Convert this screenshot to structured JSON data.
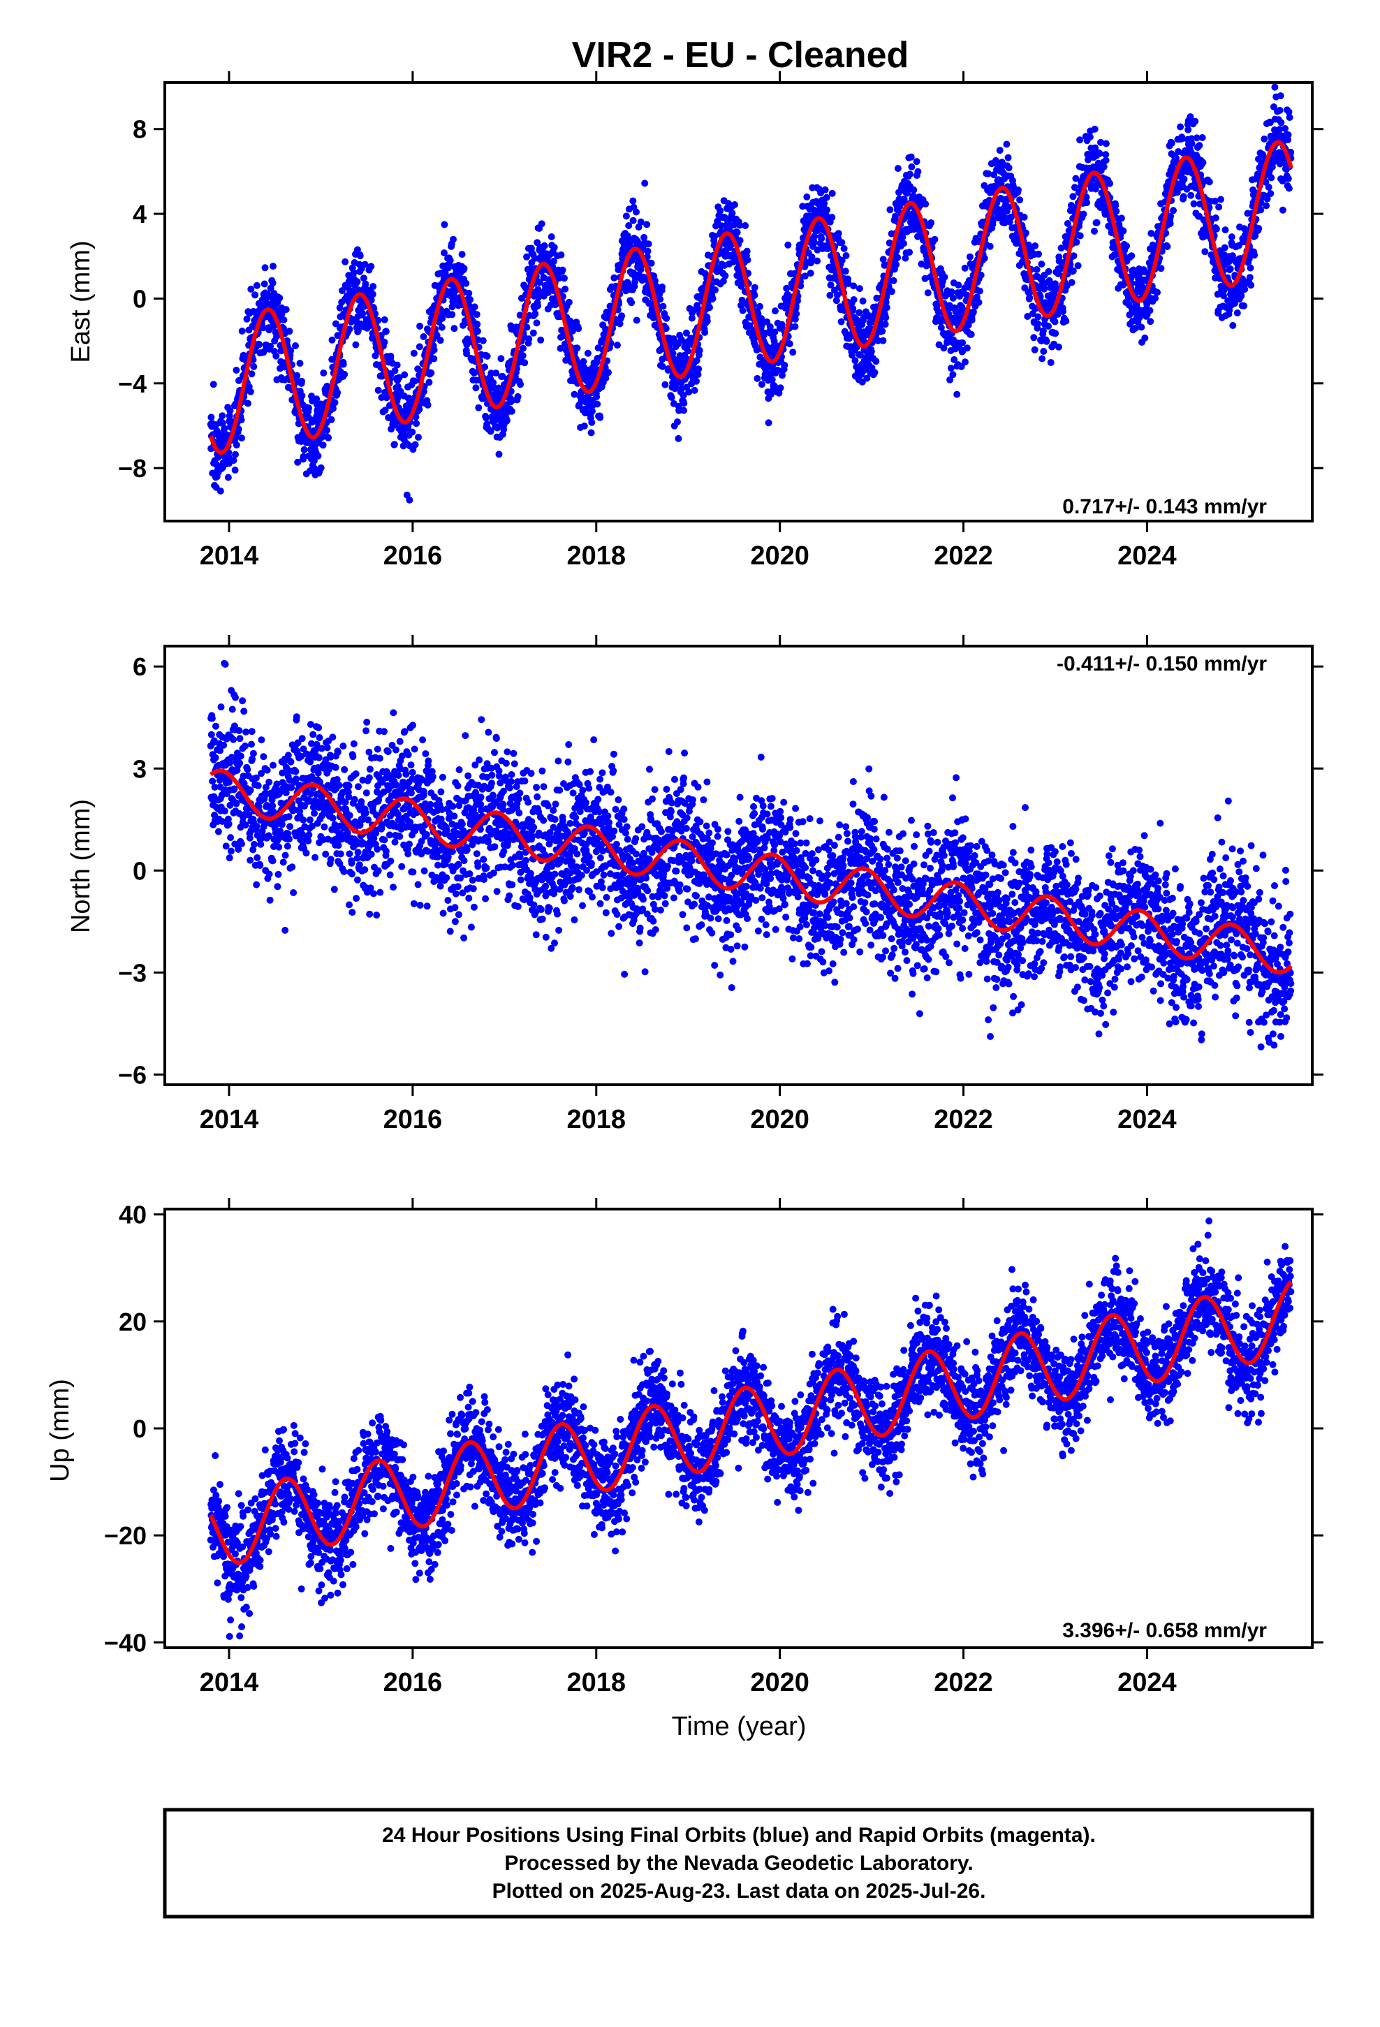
{
  "title": "VIR2  - EU - Cleaned",
  "colors": {
    "points": "#0000ff",
    "fit": "#ff0000",
    "frame": "#000000"
  },
  "footer": {
    "line1": "24 Hour Positions Using Final Orbits (blue) and Rapid Orbits (magenta).",
    "line2": "Processed by the Nevada Geodetic Laboratory.",
    "line3": "Plotted on 2025-Aug-23. Last data on 2025-Jul-26."
  },
  "chart_data": [
    {
      "type": "scatter",
      "id": "east",
      "ylabel": "East (mm)",
      "xlabel": "",
      "xlim": [
        2013.3,
        2025.8
      ],
      "ylim": [
        -10.5,
        10.2
      ],
      "xticks": [
        2014,
        2016,
        2018,
        2020,
        2022,
        2024
      ],
      "xtick_labels": [
        "2014",
        "2016",
        "2018",
        "2020",
        "2022",
        "2024"
      ],
      "yticks": [
        8,
        4,
        0,
        -4,
        -8
      ],
      "ytick_labels": [
        "8",
        "4",
        "0",
        "−4",
        "−8"
      ],
      "rate_label": "0.717+/- 0.143 mm/yr",
      "rate_position": "bottom-right",
      "trend": {
        "t0": 2019.6,
        "intercept": 0.0,
        "slope": 0.717
      },
      "seasonal": {
        "amplitude": 3.2,
        "peak": 2013.42,
        "period": 1.0
      },
      "scatter_spread": 1.0,
      "series": [
        {
          "name": "Final Orbits",
          "style": "points"
        },
        {
          "name": "Fit",
          "style": "line"
        }
      ],
      "data_start": 2013.8,
      "data_end": 2025.57
    },
    {
      "type": "scatter",
      "id": "north",
      "ylabel": "North (mm)",
      "xlabel": "",
      "xlim": [
        2013.3,
        2025.8
      ],
      "ylim": [
        -6.3,
        6.6
      ],
      "xticks": [
        2014,
        2016,
        2018,
        2020,
        2022,
        2024
      ],
      "xtick_labels": [
        "2014",
        "2016",
        "2018",
        "2020",
        "2022",
        "2024"
      ],
      "yticks": [
        6,
        3,
        0,
        -3,
        -6
      ],
      "ytick_labels": [
        "6",
        "3",
        "0",
        "−3",
        "−6"
      ],
      "rate_label": "-0.411+/- 0.150 mm/yr",
      "rate_position": "top-right",
      "trend": {
        "t0": 2019.6,
        "intercept": 0.0,
        "slope": -0.411
      },
      "seasonal": {
        "amplitude": 0.6,
        "peak": 2013.92,
        "period": 1.0
      },
      "scatter_spread": 1.05,
      "series": [
        {
          "name": "Final Orbits",
          "style": "points"
        },
        {
          "name": "Fit",
          "style": "line"
        }
      ],
      "data_start": 2013.8,
      "data_end": 2025.57
    },
    {
      "type": "scatter",
      "id": "up",
      "ylabel": "Up (mm)",
      "xlabel": "Time (year)",
      "xlim": [
        2013.3,
        2025.8
      ],
      "ylim": [
        -41,
        41
      ],
      "xticks": [
        2014,
        2016,
        2018,
        2020,
        2022,
        2024
      ],
      "xtick_labels": [
        "2014",
        "2016",
        "2018",
        "2020",
        "2022",
        "2024"
      ],
      "yticks": [
        40,
        20,
        0,
        -20,
        -40
      ],
      "ytick_labels": [
        "40",
        "20",
        "0",
        "−20",
        "−40"
      ],
      "rate_label": "3.396+/- 0.658 mm/yr",
      "rate_position": "bottom-right",
      "trend": {
        "t0": 2019.6,
        "intercept": 0.5,
        "slope": 3.396
      },
      "seasonal": {
        "amplitude": 7.0,
        "peak": 2013.62,
        "period": 1.0
      },
      "scatter_spread": 4.5,
      "series": [
        {
          "name": "Final Orbits",
          "style": "points"
        },
        {
          "name": "Fit",
          "style": "line"
        }
      ],
      "data_start": 2013.8,
      "data_end": 2025.57
    }
  ]
}
